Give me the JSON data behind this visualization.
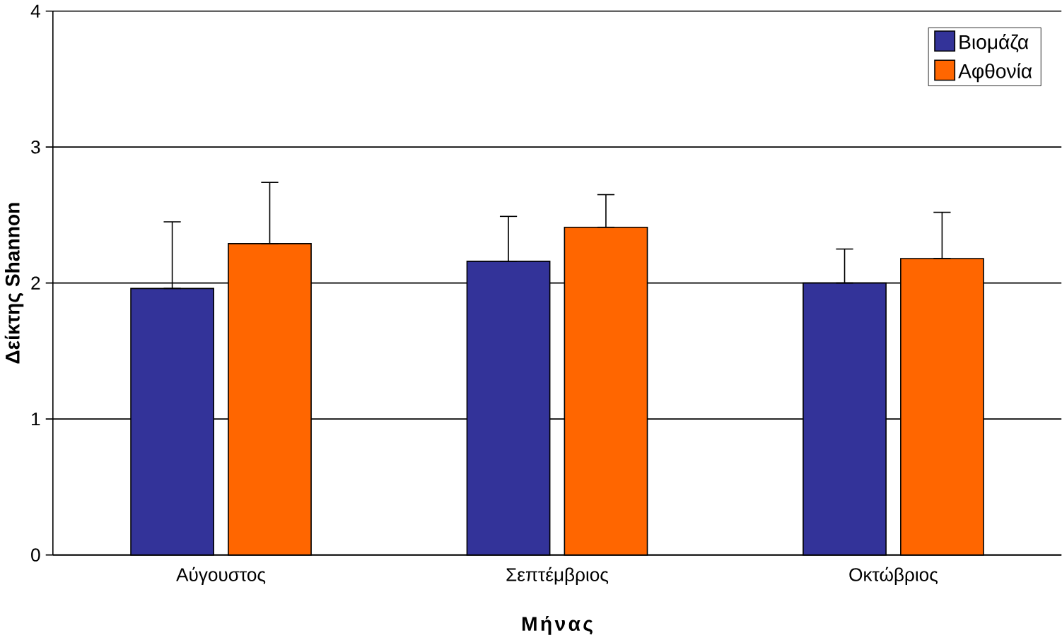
{
  "chart_data": {
    "type": "bar",
    "xlabel": "Μήνας",
    "ylabel": "Δείκτης Shannon",
    "categories": [
      "Αύγουστος",
      "Σεπτέμβριος",
      "Οκτώβριος"
    ],
    "series": [
      {
        "name": "Βιομάζα",
        "color": "#333399",
        "values": [
          1.96,
          2.16,
          2.0
        ],
        "errors": [
          [
            1.96,
            2.45
          ],
          [
            2.16,
            2.49
          ],
          [
            2.0,
            2.25
          ]
        ]
      },
      {
        "name": "Αφθονία",
        "color": "#ff6600",
        "values": [
          2.29,
          2.41,
          2.18
        ],
        "errors": [
          [
            2.29,
            2.74
          ],
          [
            2.41,
            2.65
          ],
          [
            2.18,
            2.52
          ]
        ]
      }
    ],
    "ylim": [
      0,
      4
    ],
    "yticks": [
      0,
      1,
      2,
      3,
      4
    ],
    "grid": "y",
    "legend": "top right"
  }
}
